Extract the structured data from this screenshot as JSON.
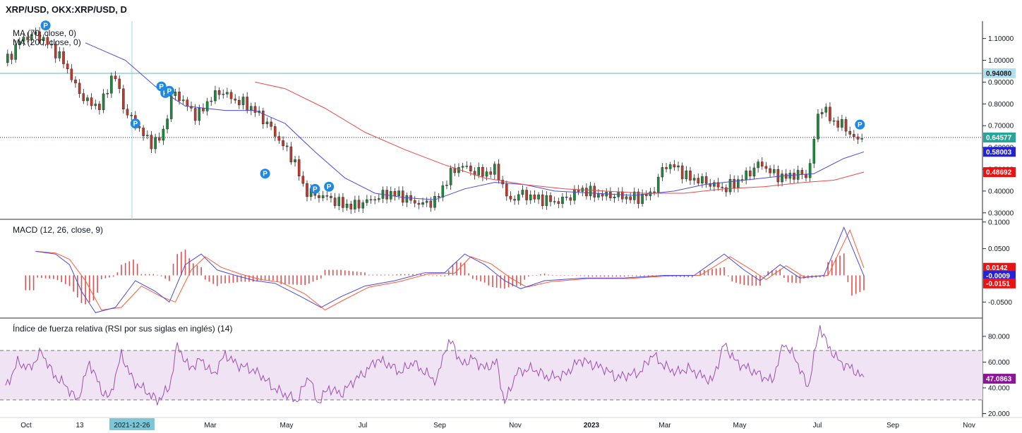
{
  "title": "XRP/USD, OKX:XRP/USD, D",
  "chart_data": [
    {
      "type": "candlestick",
      "title": "XRP/USD, OKX:XRP/USD, D",
      "indicators": [
        "MA (70, close, 0)",
        "MA (200, close, 0)"
      ],
      "ylim": [
        0.28,
        1.17
      ],
      "y_ticks": [
        "1.10000",
        "1.00000",
        "0.90000",
        "0.80000",
        "0.70000",
        "0.60000",
        "0.50000",
        "0.40000",
        "0.30000"
      ],
      "horizontal_line": 0.9408,
      "price_labels": [
        {
          "label": "0.94080",
          "color": "#b2dfeb",
          "value": 0.9408
        },
        {
          "label": "0.64577",
          "color": "#26a69a",
          "value": 0.64577
        },
        {
          "label": "0.58003",
          "color": "#2222dd",
          "value": 0.58003
        },
        {
          "label": "0.48692",
          "color": "#ee1111",
          "value": 0.48692
        }
      ],
      "close_series": [
        [
          0,
          0.99
        ],
        [
          8,
          1.1
        ],
        [
          16,
          1.12
        ],
        [
          24,
          1.05
        ],
        [
          30,
          0.98
        ],
        [
          36,
          0.86
        ],
        [
          42,
          0.8
        ],
        [
          48,
          0.79
        ],
        [
          54,
          0.95
        ],
        [
          60,
          0.76
        ],
        [
          66,
          0.7
        ],
        [
          72,
          0.62
        ],
        [
          78,
          0.64
        ],
        [
          84,
          0.86
        ],
        [
          90,
          0.8
        ],
        [
          96,
          0.74
        ],
        [
          102,
          0.82
        ],
        [
          108,
          0.86
        ],
        [
          114,
          0.82
        ],
        [
          120,
          0.8
        ],
        [
          126,
          0.76
        ],
        [
          132,
          0.7
        ],
        [
          138,
          0.62
        ],
        [
          144,
          0.55
        ],
        [
          150,
          0.4
        ],
        [
          156,
          0.38
        ],
        [
          162,
          0.37
        ],
        [
          168,
          0.34
        ],
        [
          174,
          0.33
        ],
        [
          180,
          0.35
        ],
        [
          186,
          0.37
        ],
        [
          192,
          0.39
        ],
        [
          198,
          0.38
        ],
        [
          204,
          0.35
        ],
        [
          210,
          0.34
        ],
        [
          216,
          0.36
        ],
        [
          222,
          0.47
        ],
        [
          228,
          0.52
        ],
        [
          234,
          0.49
        ],
        [
          240,
          0.48
        ],
        [
          246,
          0.5
        ],
        [
          252,
          0.35
        ],
        [
          258,
          0.39
        ],
        [
          264,
          0.37
        ],
        [
          270,
          0.36
        ],
        [
          276,
          0.35
        ],
        [
          282,
          0.37
        ],
        [
          288,
          0.41
        ],
        [
          294,
          0.39
        ],
        [
          300,
          0.38
        ],
        [
          306,
          0.38
        ],
        [
          312,
          0.37
        ],
        [
          318,
          0.37
        ],
        [
          324,
          0.39
        ],
        [
          330,
          0.52
        ],
        [
          336,
          0.51
        ],
        [
          342,
          0.46
        ],
        [
          348,
          0.45
        ],
        [
          354,
          0.43
        ],
        [
          360,
          0.41
        ],
        [
          366,
          0.44
        ],
        [
          372,
          0.48
        ],
        [
          378,
          0.53
        ],
        [
          384,
          0.48
        ],
        [
          390,
          0.46
        ],
        [
          396,
          0.48
        ],
        [
          402,
          0.47
        ],
        [
          408,
          0.8
        ],
        [
          414,
          0.72
        ],
        [
          420,
          0.7
        ],
        [
          426,
          0.63
        ],
        [
          430,
          0.65
        ]
      ],
      "ma70_series": [
        [
          40,
          1.08
        ],
        [
          60,
          1.0
        ],
        [
          75,
          0.88
        ],
        [
          90,
          0.79
        ],
        [
          110,
          0.77
        ],
        [
          125,
          0.77
        ],
        [
          140,
          0.71
        ],
        [
          155,
          0.58
        ],
        [
          170,
          0.46
        ],
        [
          185,
          0.39
        ],
        [
          200,
          0.37
        ],
        [
          215,
          0.36
        ],
        [
          230,
          0.41
        ],
        [
          245,
          0.44
        ],
        [
          260,
          0.43
        ],
        [
          275,
          0.4
        ],
        [
          295,
          0.39
        ],
        [
          315,
          0.38
        ],
        [
          335,
          0.4
        ],
        [
          350,
          0.43
        ],
        [
          370,
          0.45
        ],
        [
          390,
          0.47
        ],
        [
          405,
          0.48
        ],
        [
          420,
          0.55
        ],
        [
          430,
          0.58
        ]
      ],
      "ma200_series": [
        [
          125,
          0.9
        ],
        [
          140,
          0.87
        ],
        [
          160,
          0.78
        ],
        [
          180,
          0.67
        ],
        [
          200,
          0.59
        ],
        [
          220,
          0.52
        ],
        [
          240,
          0.46
        ],
        [
          260,
          0.43
        ],
        [
          280,
          0.41
        ],
        [
          300,
          0.4
        ],
        [
          320,
          0.39
        ],
        [
          340,
          0.39
        ],
        [
          360,
          0.41
        ],
        [
          380,
          0.42
        ],
        [
          400,
          0.44
        ],
        [
          415,
          0.45
        ],
        [
          430,
          0.487
        ]
      ]
    },
    {
      "type": "line",
      "title": "MACD (12, 26, close, 9)",
      "ylim": [
        -0.08,
        0.105
      ],
      "y_ticks": [
        "0.1000",
        "0.0500",
        "-0.0500"
      ],
      "value_labels": [
        {
          "label": "0.0142",
          "color": "#ee1111",
          "value": 0.0142
        },
        {
          "label": "-0.0009",
          "color": "#2222dd",
          "value": -0.0009
        },
        {
          "label": "-0.0151",
          "color": "#ee1111",
          "value": -0.0151
        }
      ],
      "macd_series": [
        [
          15,
          0.045
        ],
        [
          25,
          0.04
        ],
        [
          32,
          0.02
        ],
        [
          38,
          -0.03
        ],
        [
          45,
          -0.07
        ],
        [
          55,
          -0.06
        ],
        [
          65,
          -0.01
        ],
        [
          75,
          -0.03
        ],
        [
          82,
          -0.05
        ],
        [
          90,
          0.02
        ],
        [
          98,
          0.04
        ],
        [
          106,
          0.01
        ],
        [
          115,
          0.0
        ],
        [
          125,
          -0.01
        ],
        [
          135,
          -0.015
        ],
        [
          148,
          -0.04
        ],
        [
          158,
          -0.06
        ],
        [
          168,
          -0.04
        ],
        [
          180,
          -0.02
        ],
        [
          195,
          -0.01
        ],
        [
          210,
          0.005
        ],
        [
          220,
          0.005
        ],
        [
          230,
          0.04
        ],
        [
          240,
          0.02
        ],
        [
          250,
          -0.01
        ],
        [
          258,
          -0.025
        ],
        [
          270,
          -0.01
        ],
        [
          290,
          -0.005
        ],
        [
          310,
          -0.005
        ],
        [
          330,
          0.0
        ],
        [
          345,
          0.0
        ],
        [
          360,
          0.04
        ],
        [
          370,
          0.01
        ],
        [
          378,
          -0.01
        ],
        [
          388,
          0.02
        ],
        [
          398,
          -0.005
        ],
        [
          410,
          0.0
        ],
        [
          420,
          0.09
        ],
        [
          430,
          -0.001
        ]
      ],
      "signal_series": [
        [
          15,
          0.045
        ],
        [
          25,
          0.042
        ],
        [
          32,
          0.03
        ],
        [
          40,
          -0.01
        ],
        [
          48,
          -0.065
        ],
        [
          58,
          -0.06
        ],
        [
          68,
          -0.02
        ],
        [
          78,
          -0.04
        ],
        [
          85,
          -0.05
        ],
        [
          93,
          0.01
        ],
        [
          100,
          0.035
        ],
        [
          108,
          0.015
        ],
        [
          118,
          0.002
        ],
        [
          128,
          -0.008
        ],
        [
          138,
          -0.013
        ],
        [
          150,
          -0.035
        ],
        [
          160,
          -0.065
        ],
        [
          170,
          -0.045
        ],
        [
          182,
          -0.022
        ],
        [
          197,
          -0.012
        ],
        [
          212,
          0.003
        ],
        [
          225,
          0.004
        ],
        [
          233,
          0.035
        ],
        [
          243,
          0.022
        ],
        [
          253,
          -0.005
        ],
        [
          261,
          -0.022
        ],
        [
          273,
          -0.012
        ],
        [
          292,
          -0.006
        ],
        [
          312,
          -0.006
        ],
        [
          332,
          -0.001
        ],
        [
          348,
          0.0
        ],
        [
          363,
          0.035
        ],
        [
          373,
          0.012
        ],
        [
          381,
          -0.008
        ],
        [
          391,
          0.018
        ],
        [
          400,
          -0.003
        ],
        [
          412,
          0.0
        ],
        [
          423,
          0.085
        ],
        [
          430,
          0.014
        ]
      ]
    },
    {
      "type": "line",
      "title": "Índice de fuerza relativa (RSI por sus siglas en inglés) (14)",
      "ylim": [
        17,
        92
      ],
      "y_ticks": [
        "80.000",
        "60.000",
        "40.000",
        "20.000"
      ],
      "band": [
        30,
        70
      ],
      "value_labels": [
        {
          "label": "47.0863",
          "color": "#8e1599",
          "value": 47.0863
        }
      ],
      "rsi_series": [
        [
          0,
          40
        ],
        [
          6,
          60
        ],
        [
          12,
          55
        ],
        [
          18,
          68
        ],
        [
          24,
          50
        ],
        [
          30,
          42
        ],
        [
          36,
          30
        ],
        [
          42,
          60
        ],
        [
          48,
          38
        ],
        [
          52,
          32
        ],
        [
          58,
          66
        ],
        [
          64,
          45
        ],
        [
          70,
          38
        ],
        [
          76,
          30
        ],
        [
          82,
          40
        ],
        [
          86,
          73
        ],
        [
          92,
          55
        ],
        [
          98,
          62
        ],
        [
          104,
          50
        ],
        [
          110,
          66
        ],
        [
          116,
          58
        ],
        [
          122,
          55
        ],
        [
          128,
          50
        ],
        [
          134,
          40
        ],
        [
          140,
          35
        ],
        [
          146,
          30
        ],
        [
          152,
          50
        ],
        [
          156,
          28
        ],
        [
          162,
          40
        ],
        [
          168,
          35
        ],
        [
          174,
          45
        ],
        [
          180,
          52
        ],
        [
          186,
          62
        ],
        [
          192,
          58
        ],
        [
          198,
          52
        ],
        [
          204,
          60
        ],
        [
          210,
          52
        ],
        [
          216,
          45
        ],
        [
          220,
          70
        ],
        [
          224,
          76
        ],
        [
          228,
          58
        ],
        [
          234,
          63
        ],
        [
          240,
          55
        ],
        [
          246,
          60
        ],
        [
          250,
          28
        ],
        [
          256,
          52
        ],
        [
          264,
          55
        ],
        [
          272,
          48
        ],
        [
          280,
          50
        ],
        [
          288,
          62
        ],
        [
          294,
          58
        ],
        [
          300,
          55
        ],
        [
          306,
          48
        ],
        [
          312,
          50
        ],
        [
          318,
          52
        ],
        [
          324,
          66
        ],
        [
          330,
          57
        ],
        [
          336,
          52
        ],
        [
          342,
          55
        ],
        [
          348,
          50
        ],
        [
          354,
          45
        ],
        [
          360,
          74
        ],
        [
          366,
          60
        ],
        [
          372,
          55
        ],
        [
          378,
          50
        ],
        [
          384,
          45
        ],
        [
          390,
          75
        ],
        [
          396,
          62
        ],
        [
          402,
          40
        ],
        [
          408,
          88
        ],
        [
          412,
          72
        ],
        [
          418,
          60
        ],
        [
          424,
          55
        ],
        [
          430,
          47.0863
        ]
      ]
    }
  ],
  "x_axis": {
    "labels": [
      "Oct",
      "13",
      "Mar",
      "May",
      "Jul",
      "Sep",
      "Nov",
      "2023",
      "Mar",
      "May",
      "Jul",
      "Sep",
      "Nov"
    ],
    "highlight_label": "2021-12-26"
  },
  "markers": [
    "P",
    "P",
    "P",
    "P",
    "P",
    "P",
    "P",
    "P"
  ],
  "cursor": {
    "time_label": "2021-12-26"
  }
}
